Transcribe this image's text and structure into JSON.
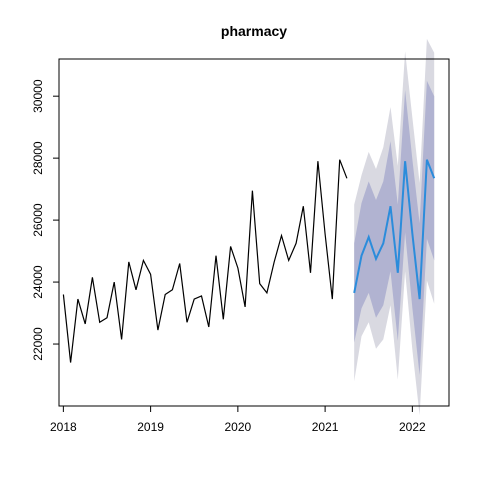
{
  "chart_data": {
    "type": "line",
    "title": "pharmacy",
    "xlabel": "",
    "ylabel": "",
    "xlim": [
      2017.95,
      2022.42
    ],
    "ylim": [
      20000,
      31200
    ],
    "x_ticks": [
      2018,
      2019,
      2020,
      2021,
      2022
    ],
    "x_tick_labels": [
      "2018",
      "2019",
      "2020",
      "2021",
      "2022"
    ],
    "y_ticks": [
      22000,
      24000,
      26000,
      28000,
      30000
    ],
    "y_tick_labels": [
      "22000",
      "24000",
      "26000",
      "28000",
      "30000"
    ],
    "grid": false,
    "colors": {
      "actual": "#000000",
      "forecast": "#2b8cdb",
      "band_95": "#d9d9e1",
      "band_80": "#b1b3d1",
      "axis": "#000000"
    },
    "actual": {
      "x": [
        2018.0,
        2018.083,
        2018.167,
        2018.25,
        2018.333,
        2018.417,
        2018.5,
        2018.583,
        2018.667,
        2018.75,
        2018.833,
        2018.917,
        2019.0,
        2019.083,
        2019.167,
        2019.25,
        2019.333,
        2019.417,
        2019.5,
        2019.583,
        2019.667,
        2019.75,
        2019.833,
        2019.917,
        2020.0,
        2020.083,
        2020.167,
        2020.25,
        2020.333,
        2020.417,
        2020.5,
        2020.583,
        2020.667,
        2020.75,
        2020.833,
        2020.917,
        2021.0,
        2021.083,
        2021.167,
        2021.25
      ],
      "y": [
        23600,
        21400,
        23450,
        22650,
        24150,
        22700,
        22850,
        24000,
        22150,
        24650,
        23750,
        24700,
        24250,
        22450,
        23600,
        23750,
        24600,
        22700,
        23450,
        23550,
        22550,
        24850,
        22800,
        25150,
        24450,
        23200,
        26950,
        23950,
        23650,
        24650,
        25500,
        24700,
        25250,
        26450,
        24300,
        27900,
        25550,
        23450,
        27950,
        27350
      ]
    },
    "forecast": {
      "x": [
        2021.333,
        2021.417,
        2021.5,
        2021.583,
        2021.667,
        2021.75,
        2021.833,
        2021.917,
        2022.0,
        2022.083,
        2022.167,
        2022.25
      ],
      "mean": [
        23650,
        24850,
        25450,
        24750,
        25250,
        26450,
        24300,
        27900,
        25550,
        23450,
        27950,
        27350
      ],
      "lo80": [
        22050,
        23150,
        23650,
        22850,
        23250,
        24350,
        22100,
        25600,
        23150,
        21000,
        25400,
        24700
      ],
      "hi80": [
        25250,
        26550,
        27250,
        26650,
        27250,
        28550,
        26500,
        30200,
        27950,
        25900,
        30500,
        30000
      ],
      "lo95": [
        20800,
        22250,
        22700,
        21850,
        22150,
        23250,
        20850,
        24350,
        21800,
        19700,
        24050,
        23300
      ],
      "hi95": [
        26500,
        27450,
        28200,
        27650,
        28350,
        29650,
        27750,
        31450,
        29300,
        27200,
        31850,
        31400
      ]
    }
  }
}
